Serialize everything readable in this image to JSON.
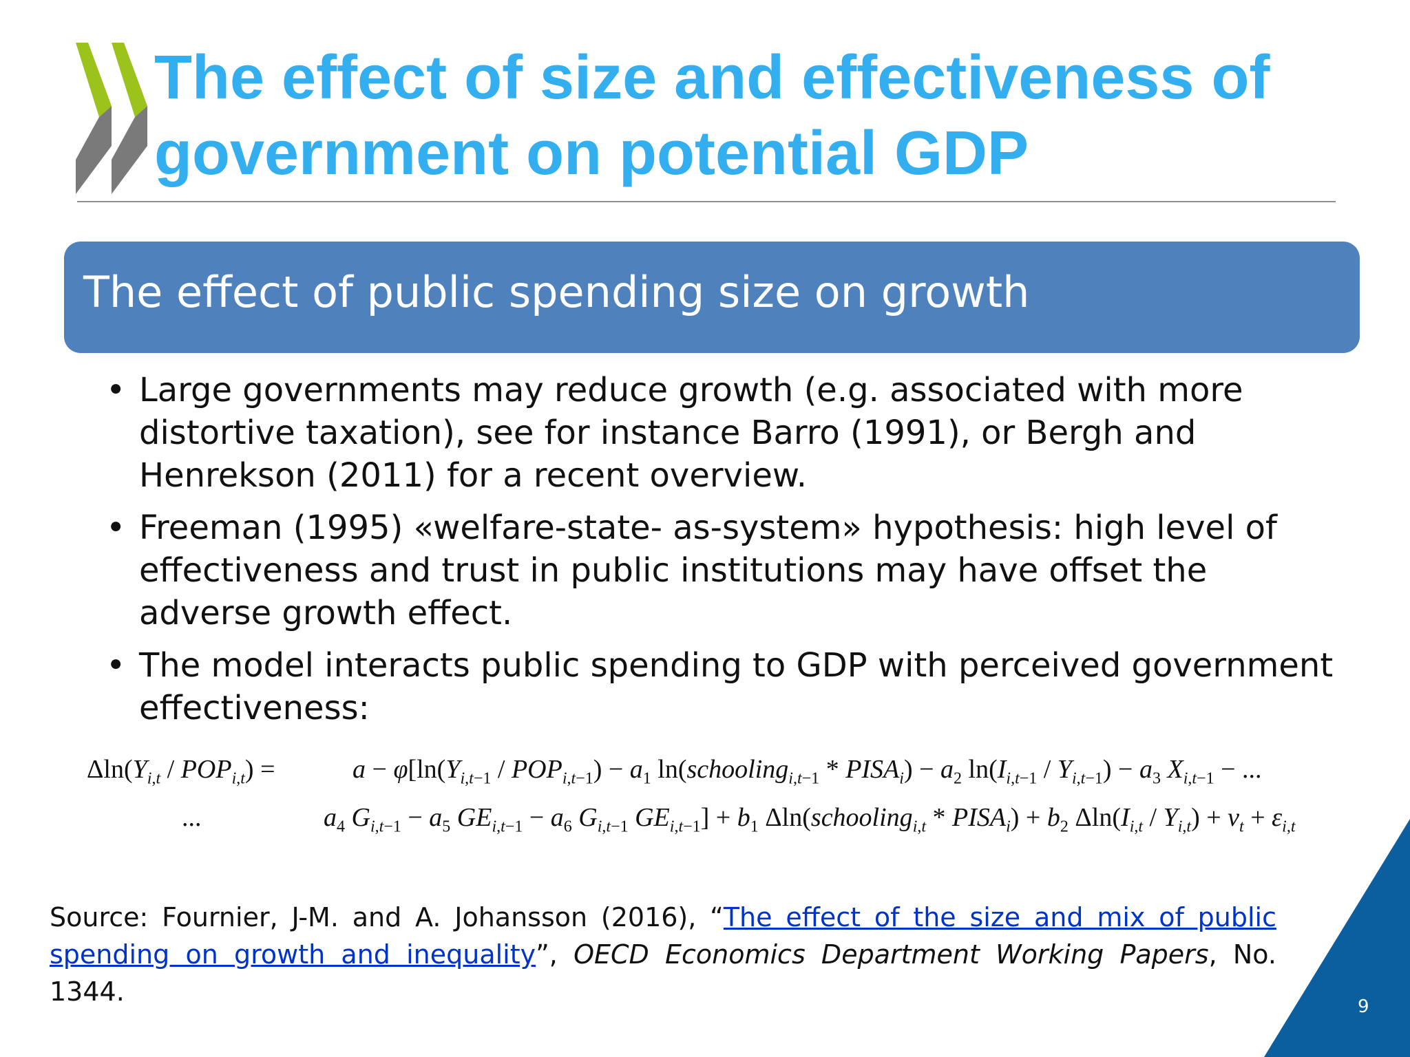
{
  "slide": {
    "title": "The effect of size and effectiveness of government on potential GDP",
    "section_heading": "The effect of public spending size on growth",
    "bullets": [
      "Large governments may reduce growth (e.g. associated with more distortive taxation), see for instance Barro (1991), or Bergh and Henrekson (2011) for a recent overview.",
      "Freeman (1995) «welfare-state- as-system» hypothesis: high level of effectiveness and trust in public institutions may have offset the adverse growth effect.",
      "The model interacts  public spending to GDP with perceived government effectiveness:"
    ],
    "bullet_symbol": "•",
    "equation": {
      "lhs": "Δln(Y_{i,t} / POP_{i,t}) =",
      "line1": "a − φ[ln(Y_{i,t−1} / POP_{i,t−1}) − a_1 ln(schooling_{i,t−1} * PISA_i) − a_2 ln(I_{i,t−1} / Y_{i,t−1}) − a_3 X_{i,t−1} − ...",
      "continuation": "...",
      "line2": "a_4 G_{i,t−1} − a_5 GE_{i,t−1} − a_6 G_{i,t−1} GE_{i,t−1}] + b_1 Δln(schooling_{i,t} * PISA_i) + b_2 Δln(I_{i,t} / Y_{i,t}) + v_t + ε_{i,t}"
    },
    "source": {
      "prefix": "Source: Fournier, J-M. and A. Johansson (2016), “",
      "link_text": "The effect of the size and mix of public spending on growth and inequality",
      "after_link": "”, ",
      "journal": "OECD Economics Department Working Papers",
      "suffix": ", No. 1344."
    },
    "page_number": "9"
  },
  "colors": {
    "title": "#33aff0",
    "banner": "#4f81bd",
    "logo_green": "#9bc31c",
    "logo_gray": "#7a7a7a",
    "corner": "#0b5f9e",
    "link": "#0033cc"
  }
}
